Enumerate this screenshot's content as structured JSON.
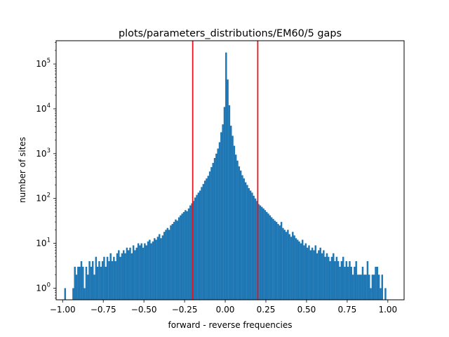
{
  "chart_data": {
    "type": "histogram",
    "title": "plots/parameters_distributions/EM60/5 gaps",
    "xlabel": "forward - reverse frequencies",
    "ylabel": "number of sites",
    "yscale": "log",
    "xlim": [
      -1.04,
      1.1
    ],
    "ylim": [
      0.55,
      330000
    ],
    "bin_width": 0.01,
    "x_ticks": [
      {
        "value": -1.0,
        "label": "−1.00"
      },
      {
        "value": -0.75,
        "label": "−0.75"
      },
      {
        "value": -0.5,
        "label": "−0.50"
      },
      {
        "value": -0.25,
        "label": "−0.25"
      },
      {
        "value": 0.0,
        "label": "0.00"
      },
      {
        "value": 0.25,
        "label": "0.25"
      },
      {
        "value": 0.5,
        "label": "0.50"
      },
      {
        "value": 0.75,
        "label": "0.75"
      },
      {
        "value": 1.0,
        "label": "1.00"
      }
    ],
    "y_ticks": [
      {
        "value": 1,
        "base": "10",
        "exp": "0"
      },
      {
        "value": 10,
        "base": "10",
        "exp": "1"
      },
      {
        "value": 100,
        "base": "10",
        "exp": "2"
      },
      {
        "value": 1000,
        "base": "10",
        "exp": "3"
      },
      {
        "value": 10000,
        "base": "10",
        "exp": "4"
      },
      {
        "value": 100000,
        "base": "10",
        "exp": "5"
      }
    ],
    "vlines": [
      {
        "x": -0.2,
        "color": "#e8141b"
      },
      {
        "x": 0.2,
        "color": "#e8141b"
      }
    ],
    "bar_color": "#1f77b4",
    "bins": [
      [
        -0.99,
        1
      ],
      [
        -0.94,
        1
      ],
      [
        -0.93,
        3
      ],
      [
        -0.92,
        2
      ],
      [
        -0.91,
        3
      ],
      [
        -0.9,
        3
      ],
      [
        -0.89,
        4
      ],
      [
        -0.88,
        3
      ],
      [
        -0.87,
        1
      ],
      [
        -0.86,
        3
      ],
      [
        -0.85,
        2
      ],
      [
        -0.84,
        4
      ],
      [
        -0.83,
        3
      ],
      [
        -0.82,
        4
      ],
      [
        -0.81,
        2
      ],
      [
        -0.8,
        5
      ],
      [
        -0.79,
        3
      ],
      [
        -0.78,
        4
      ],
      [
        -0.77,
        3
      ],
      [
        -0.76,
        4
      ],
      [
        -0.75,
        5
      ],
      [
        -0.74,
        3
      ],
      [
        -0.73,
        5
      ],
      [
        -0.72,
        4
      ],
      [
        -0.71,
        6
      ],
      [
        -0.7,
        4
      ],
      [
        -0.69,
        5
      ],
      [
        -0.68,
        4
      ],
      [
        -0.67,
        6
      ],
      [
        -0.66,
        7
      ],
      [
        -0.65,
        5
      ],
      [
        -0.64,
        6
      ],
      [
        -0.63,
        7
      ],
      [
        -0.62,
        6
      ],
      [
        -0.61,
        8
      ],
      [
        -0.6,
        7
      ],
      [
        -0.59,
        8
      ],
      [
        -0.58,
        6
      ],
      [
        -0.57,
        9
      ],
      [
        -0.56,
        7
      ],
      [
        -0.55,
        8
      ],
      [
        -0.54,
        10
      ],
      [
        -0.53,
        9
      ],
      [
        -0.52,
        10
      ],
      [
        -0.51,
        8
      ],
      [
        -0.5,
        10
      ],
      [
        -0.49,
        9
      ],
      [
        -0.48,
        11
      ],
      [
        -0.47,
        12
      ],
      [
        -0.46,
        10
      ],
      [
        -0.45,
        11
      ],
      [
        -0.44,
        13
      ],
      [
        -0.43,
        12
      ],
      [
        -0.42,
        14
      ],
      [
        -0.41,
        16
      ],
      [
        -0.4,
        13
      ],
      [
        -0.39,
        15
      ],
      [
        -0.38,
        18
      ],
      [
        -0.37,
        20
      ],
      [
        -0.36,
        22
      ],
      [
        -0.35,
        20
      ],
      [
        -0.34,
        25
      ],
      [
        -0.33,
        27
      ],
      [
        -0.32,
        30
      ],
      [
        -0.31,
        34
      ],
      [
        -0.3,
        32
      ],
      [
        -0.29,
        38
      ],
      [
        -0.28,
        42
      ],
      [
        -0.27,
        46
      ],
      [
        -0.26,
        50
      ],
      [
        -0.25,
        55
      ],
      [
        -0.24,
        52
      ],
      [
        -0.23,
        60
      ],
      [
        -0.22,
        70
      ],
      [
        -0.21,
        78
      ],
      [
        -0.2,
        88
      ],
      [
        -0.19,
        105
      ],
      [
        -0.18,
        120
      ],
      [
        -0.17,
        135
      ],
      [
        -0.16,
        150
      ],
      [
        -0.15,
        180
      ],
      [
        -0.14,
        210
      ],
      [
        -0.13,
        250
      ],
      [
        -0.12,
        280
      ],
      [
        -0.11,
        320
      ],
      [
        -0.1,
        400
      ],
      [
        -0.09,
        500
      ],
      [
        -0.08,
        620
      ],
      [
        -0.07,
        800
      ],
      [
        -0.06,
        1000
      ],
      [
        -0.05,
        1300
      ],
      [
        -0.04,
        1800
      ],
      [
        -0.03,
        3000
      ],
      [
        -0.02,
        4500
      ],
      [
        -0.01,
        11000
      ],
      [
        0.0,
        180000
      ],
      [
        0.01,
        45000
      ],
      [
        0.02,
        12000
      ],
      [
        0.03,
        4200
      ],
      [
        0.04,
        2500
      ],
      [
        0.05,
        1500
      ],
      [
        0.06,
        950
      ],
      [
        0.07,
        700
      ],
      [
        0.08,
        520
      ],
      [
        0.09,
        420
      ],
      [
        0.1,
        330
      ],
      [
        0.11,
        280
      ],
      [
        0.12,
        230
      ],
      [
        0.13,
        200
      ],
      [
        0.14,
        170
      ],
      [
        0.15,
        150
      ],
      [
        0.16,
        135
      ],
      [
        0.17,
        115
      ],
      [
        0.18,
        100
      ],
      [
        0.19,
        88
      ],
      [
        0.2,
        75
      ],
      [
        0.21,
        70
      ],
      [
        0.22,
        65
      ],
      [
        0.23,
        60
      ],
      [
        0.24,
        55
      ],
      [
        0.25,
        50
      ],
      [
        0.26,
        46
      ],
      [
        0.27,
        42
      ],
      [
        0.28,
        38
      ],
      [
        0.29,
        35
      ],
      [
        0.3,
        32
      ],
      [
        0.31,
        30
      ],
      [
        0.32,
        27
      ],
      [
        0.33,
        25
      ],
      [
        0.34,
        30
      ],
      [
        0.35,
        22
      ],
      [
        0.36,
        20
      ],
      [
        0.37,
        18
      ],
      [
        0.38,
        20
      ],
      [
        0.39,
        16
      ],
      [
        0.4,
        14
      ],
      [
        0.41,
        18
      ],
      [
        0.42,
        15
      ],
      [
        0.43,
        13
      ],
      [
        0.44,
        12
      ],
      [
        0.45,
        11
      ],
      [
        0.46,
        10
      ],
      [
        0.47,
        12
      ],
      [
        0.48,
        9
      ],
      [
        0.49,
        10
      ],
      [
        0.5,
        8
      ],
      [
        0.51,
        9
      ],
      [
        0.52,
        7
      ],
      [
        0.53,
        8
      ],
      [
        0.54,
        7
      ],
      [
        0.55,
        9
      ],
      [
        0.56,
        6
      ],
      [
        0.57,
        7
      ],
      [
        0.58,
        8
      ],
      [
        0.59,
        6
      ],
      [
        0.6,
        7
      ],
      [
        0.61,
        5
      ],
      [
        0.62,
        6
      ],
      [
        0.63,
        5
      ],
      [
        0.64,
        4
      ],
      [
        0.65,
        5
      ],
      [
        0.66,
        6
      ],
      [
        0.67,
        4
      ],
      [
        0.68,
        5
      ],
      [
        0.69,
        4
      ],
      [
        0.7,
        3
      ],
      [
        0.71,
        4
      ],
      [
        0.72,
        5
      ],
      [
        0.73,
        3
      ],
      [
        0.74,
        4
      ],
      [
        0.75,
        3
      ],
      [
        0.76,
        4
      ],
      [
        0.77,
        3
      ],
      [
        0.78,
        2
      ],
      [
        0.79,
        3
      ],
      [
        0.8,
        4
      ],
      [
        0.81,
        2
      ],
      [
        0.82,
        2
      ],
      [
        0.83,
        2
      ],
      [
        0.84,
        3
      ],
      [
        0.85,
        2
      ],
      [
        0.86,
        2
      ],
      [
        0.87,
        4
      ],
      [
        0.88,
        2
      ],
      [
        0.89,
        1
      ],
      [
        0.9,
        2
      ],
      [
        0.91,
        2
      ],
      [
        0.92,
        3
      ],
      [
        0.93,
        3
      ],
      [
        0.94,
        2
      ],
      [
        0.95,
        1
      ],
      [
        0.96,
        2
      ],
      [
        0.98,
        1
      ]
    ]
  }
}
